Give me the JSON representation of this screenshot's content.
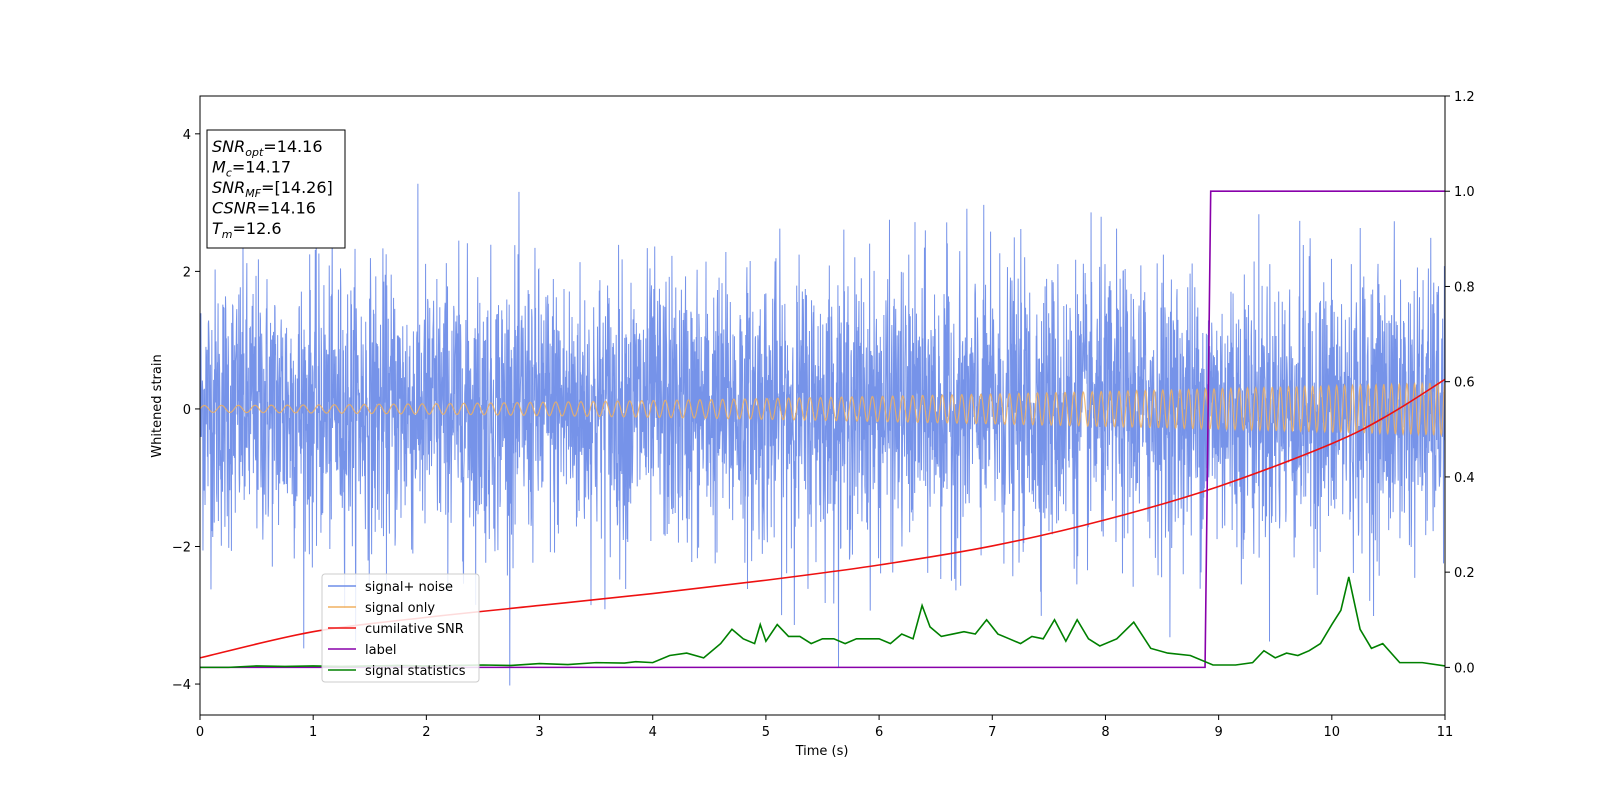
{
  "chart_data": {
    "type": "line",
    "xlabel": "Time (s)",
    "ylabel": "Whitened strain",
    "xlim": [
      0,
      11
    ],
    "ylim_left": [
      -4.45,
      4.55
    ],
    "ylim_right": [
      -0.1,
      1.2
    ],
    "xticks": [
      "0",
      "1",
      "2",
      "3",
      "4",
      "5",
      "6",
      "7",
      "8",
      "9",
      "10",
      "11"
    ],
    "yticks_left": [
      "−4",
      "−2",
      "0",
      "2",
      "4"
    ],
    "yticks_right": [
      "0.0",
      "0.2",
      "0.4",
      "0.6",
      "0.8",
      "1.0",
      "1.2"
    ],
    "legend_position": "lower-left",
    "series": [
      {
        "name": "signal+ noise",
        "color": "#6f8de8",
        "axis": "left",
        "kind": "noise",
        "x_range": [
          0,
          11
        ],
        "std": 1.0,
        "approx_range": [
          -4.05,
          4.15
        ]
      },
      {
        "name": "signal only",
        "color": "#f0b060",
        "axis": "left",
        "kind": "chirp",
        "x_range": [
          0,
          11
        ],
        "amplitude_start": 0.05,
        "amplitude_end": 0.38,
        "cycles_per_second_start": 6.5,
        "cycles_per_second_end": 15
      },
      {
        "name": "cumilative SNR",
        "color": "#ee1111",
        "axis": "right",
        "x": [
          0,
          1,
          2,
          3,
          4,
          5,
          6,
          7,
          8,
          9,
          10,
          10.5,
          11
        ],
        "y": [
          0.02,
          0.075,
          0.105,
          0.13,
          0.155,
          0.183,
          0.215,
          0.255,
          0.31,
          0.38,
          0.47,
          0.53,
          0.605
        ]
      },
      {
        "name": "label",
        "color": "#8800aa",
        "axis": "right",
        "x": [
          0,
          8.88,
          8.93,
          11
        ],
        "y": [
          0.0,
          0.0,
          1.0,
          1.0
        ]
      },
      {
        "name": "signal statistics",
        "color": "#008000",
        "axis": "right",
        "x": [
          0,
          0.25,
          0.5,
          0.75,
          1,
          1.25,
          1.5,
          1.75,
          2,
          2.25,
          2.5,
          2.75,
          3,
          3.25,
          3.5,
          3.75,
          3.85,
          4,
          4.15,
          4.3,
          4.45,
          4.6,
          4.7,
          4.8,
          4.9,
          4.95,
          5.0,
          5.1,
          5.2,
          5.3,
          5.4,
          5.5,
          5.6,
          5.7,
          5.8,
          5.9,
          6.0,
          6.1,
          6.2,
          6.3,
          6.38,
          6.45,
          6.55,
          6.65,
          6.75,
          6.85,
          6.95,
          7.05,
          7.15,
          7.25,
          7.35,
          7.45,
          7.55,
          7.65,
          7.75,
          7.85,
          7.95,
          8.1,
          8.25,
          8.4,
          8.55,
          8.75,
          8.95,
          9.15,
          9.3,
          9.4,
          9.5,
          9.6,
          9.7,
          9.8,
          9.9,
          10.0,
          10.08,
          10.15,
          10.25,
          10.35,
          10.45,
          10.6,
          10.8,
          11.0
        ],
        "y": [
          0.0,
          0.0,
          0.003,
          0.002,
          0.003,
          0.002,
          0.003,
          0.004,
          0.003,
          0.004,
          0.005,
          0.004,
          0.008,
          0.006,
          0.01,
          0.009,
          0.012,
          0.01,
          0.025,
          0.03,
          0.02,
          0.05,
          0.08,
          0.06,
          0.05,
          0.09,
          0.055,
          0.09,
          0.065,
          0.065,
          0.05,
          0.06,
          0.06,
          0.05,
          0.06,
          0.06,
          0.06,
          0.05,
          0.07,
          0.06,
          0.13,
          0.085,
          0.065,
          0.07,
          0.075,
          0.07,
          0.1,
          0.07,
          0.06,
          0.05,
          0.065,
          0.06,
          0.1,
          0.055,
          0.1,
          0.06,
          0.045,
          0.06,
          0.095,
          0.04,
          0.03,
          0.025,
          0.005,
          0.005,
          0.01,
          0.035,
          0.02,
          0.03,
          0.025,
          0.035,
          0.05,
          0.09,
          0.12,
          0.19,
          0.08,
          0.04,
          0.05,
          0.01,
          0.01,
          0.003
        ]
      }
    ],
    "annotation_box": {
      "position": "top-left",
      "lines": [
        {
          "sym": "SNR",
          "sub": "opt",
          "rest": "=14.16"
        },
        {
          "sym": "M",
          "sub": "c",
          "rest": "=14.17"
        },
        {
          "sym": "SNR",
          "sub": "MF",
          "rest": "=[14.26]"
        },
        {
          "sym": "CSNR",
          "sub": "",
          "rest": "=14.16"
        },
        {
          "sym": "T",
          "sub": "m",
          "rest": "=12.6"
        }
      ]
    }
  }
}
